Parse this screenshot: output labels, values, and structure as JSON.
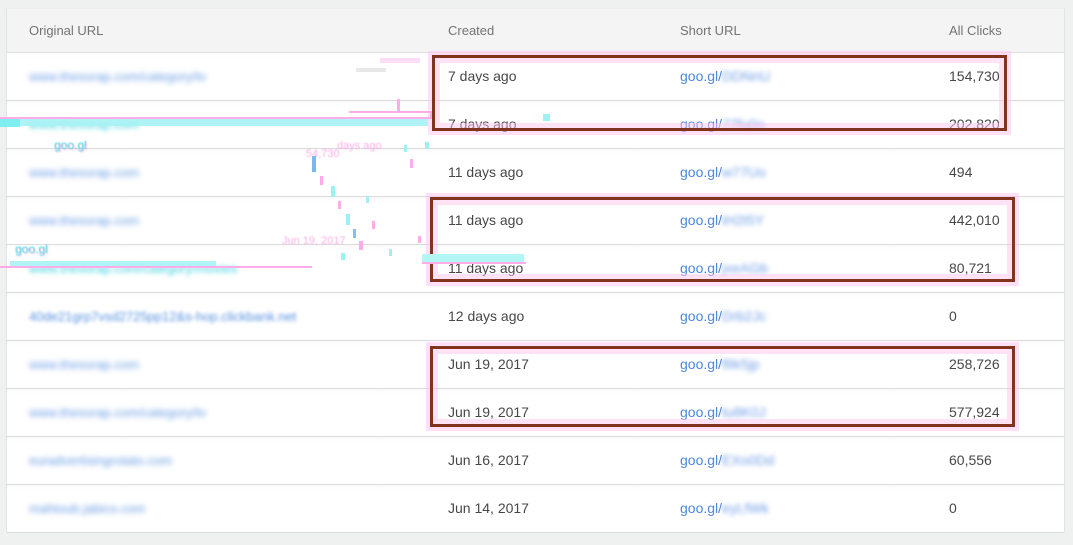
{
  "table": {
    "columns": [
      {
        "key": "original_url",
        "label": "Original URL"
      },
      {
        "key": "created",
        "label": "Created"
      },
      {
        "key": "short_url",
        "label": "Short URL"
      },
      {
        "key": "all_clicks",
        "label": "All Clicks"
      }
    ],
    "short_url_prefix": "goo.gl/",
    "rows": [
      {
        "original_url": "www.thesorap.com/category/tv",
        "created": "7 days ago",
        "short_code": "DDNnU",
        "clicks": "154,730",
        "boxed": true,
        "glitched": false
      },
      {
        "original_url": "www.thesorap.com",
        "created": "7 days ago",
        "short_code": "77fu0o",
        "clicks": "202,820",
        "boxed": true,
        "glitched": true
      },
      {
        "original_url": "www.thesorap.com",
        "created": "11 days ago",
        "short_code": "w77Uo",
        "clicks": "494",
        "boxed": false,
        "glitched": false
      },
      {
        "original_url": "www.thesorap.com",
        "created": "11 days ago",
        "short_code": "iH2t5Y",
        "clicks": "442,010",
        "boxed": true,
        "glitched": false
      },
      {
        "original_url": "www.thesorap.com/category/movies",
        "created": "11 days ago",
        "short_code": "jxeAGb",
        "clicks": "80,721",
        "boxed": true,
        "glitched": true
      },
      {
        "original_url": "40de21grp7vsd2725pp12&s-hop.clickbank.net",
        "created": "12 days ago",
        "short_code": "Drb2Jc",
        "clicks": "0",
        "boxed": false,
        "glitched": false,
        "sharp": true
      },
      {
        "original_url": "www.thesorap.com",
        "created": "Jun 19, 2017",
        "short_code": "f8k5jp",
        "clicks": "258,726",
        "boxed": true,
        "glitched": false
      },
      {
        "original_url": "www.thesorap.com/category/tv",
        "created": "Jun 19, 2017",
        "short_code": "tu8K0J",
        "clicks": "577,924",
        "boxed": true,
        "glitched": false
      },
      {
        "original_url": "euradvertisingrotato.com",
        "created": "Jun 16, 2017",
        "short_code": "EXo0Dd",
        "clicks": "60,556",
        "boxed": false,
        "glitched": false
      },
      {
        "original_url": "mahtoub.jabico.com",
        "created": "Jun 14, 2017",
        "short_code": "eyLfWk",
        "clicks": "0",
        "boxed": false,
        "glitched": false
      }
    ]
  },
  "colors": {
    "link_blue": "#4e86e0",
    "highlight_border": "#82331d",
    "highlight_glow": "#ffc6ee",
    "glitch_pink": "#fface8",
    "glitch_cyan": "#9ef0f2",
    "header_bg": "#f4f4f4",
    "header_text": "#737373"
  },
  "glitch": {
    "ghosts": [
      {
        "text": "goo.gl"
      },
      {
        "text": "days ago"
      },
      {
        "text": "54,730"
      },
      {
        "text": "goo.gl"
      },
      {
        "text": "Jun 19, 2017"
      }
    ]
  }
}
